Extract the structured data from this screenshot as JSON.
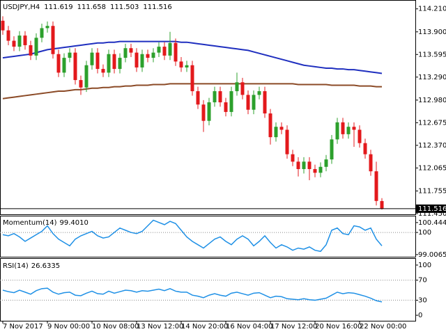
{
  "chart_data": {
    "type": "candlestick",
    "title": "USDJPY,H4",
    "categories": [
      "7 Nov 2017",
      null,
      null,
      null,
      null,
      null,
      null,
      null,
      "9 Nov 00:00",
      null,
      null,
      null,
      null,
      null,
      null,
      null,
      "10 Nov 08:00",
      null,
      null,
      null,
      null,
      null,
      null,
      null,
      "13 Nov 12:00",
      null,
      null,
      null,
      null,
      null,
      null,
      null,
      "14 Nov 20:00",
      null,
      null,
      null,
      null,
      null,
      null,
      null,
      "16 Nov 04:00",
      null,
      null,
      null,
      null,
      null,
      null,
      null,
      "17 Nov 12:00",
      null,
      null,
      null,
      null,
      null,
      null,
      null,
      "20 Nov 16:00",
      null,
      null,
      null,
      null,
      null,
      null,
      null,
      "22 Nov 00:00",
      null,
      null,
      null,
      null
    ],
    "open": [
      114.05,
      113.92,
      113.78,
      113.7,
      113.85,
      113.72,
      113.58,
      113.82,
      113.95,
      113.98,
      113.6,
      113.35,
      113.55,
      113.62,
      113.25,
      113.15,
      113.45,
      113.62,
      113.4,
      113.35,
      113.6,
      113.4,
      113.55,
      113.68,
      113.62,
      113.42,
      113.6,
      113.55,
      113.62,
      113.7,
      113.58,
      113.75,
      113.5,
      113.42,
      113.45,
      113.1,
      112.92,
      112.7,
      112.95,
      113.1,
      112.95,
      112.82,
      113.1,
      113.22,
      113.05,
      112.85,
      113.05,
      113.1,
      112.8,
      112.48,
      112.62,
      112.58,
      112.25,
      112.15,
      112.05,
      112.15,
      112.05,
      112.0,
      112.08,
      112.18,
      112.45,
      112.68,
      112.52,
      112.62,
      112.58,
      112.4,
      112.25,
      112.02,
      111.619
    ],
    "high": [
      114.11,
      113.98,
      113.84,
      113.91,
      113.91,
      113.78,
      113.88,
      114.01,
      114.04,
      114.04,
      113.66,
      113.61,
      113.68,
      113.68,
      113.31,
      113.51,
      113.68,
      113.68,
      113.46,
      113.66,
      113.66,
      113.61,
      113.74,
      113.74,
      113.68,
      113.66,
      113.66,
      113.68,
      113.76,
      113.76,
      113.9,
      113.81,
      113.56,
      113.51,
      113.51,
      113.16,
      112.98,
      113.01,
      113.16,
      113.16,
      113.01,
      113.16,
      113.35,
      113.28,
      113.11,
      113.11,
      113.16,
      113.16,
      112.86,
      112.68,
      112.68,
      112.64,
      112.31,
      112.21,
      112.21,
      112.21,
      112.11,
      112.14,
      112.24,
      112.51,
      112.74,
      112.74,
      112.68,
      112.68,
      112.64,
      112.46,
      112.31,
      112.15,
      111.658
    ],
    "low": [
      113.86,
      113.72,
      113.64,
      113.64,
      113.66,
      113.52,
      113.52,
      113.76,
      113.89,
      113.54,
      113.29,
      113.29,
      113.49,
      113.19,
      113.05,
      113.09,
      113.39,
      113.34,
      113.29,
      113.29,
      113.34,
      113.34,
      113.49,
      113.56,
      113.36,
      113.36,
      113.49,
      113.49,
      113.56,
      113.52,
      113.52,
      113.44,
      113.36,
      113.36,
      113.04,
      112.86,
      112.55,
      112.64,
      112.89,
      112.89,
      112.76,
      112.76,
      113.04,
      112.99,
      112.79,
      112.79,
      112.99,
      112.74,
      112.38,
      112.42,
      112.52,
      112.19,
      112.09,
      111.95,
      111.99,
      111.9,
      111.94,
      111.94,
      112.02,
      112.12,
      112.39,
      112.46,
      112.46,
      112.35,
      112.34,
      112.19,
      111.96,
      111.56,
      111.503
    ],
    "close": [
      113.92,
      113.78,
      113.7,
      113.85,
      113.72,
      113.58,
      113.82,
      113.95,
      113.98,
      113.6,
      113.35,
      113.55,
      113.62,
      113.25,
      113.15,
      113.45,
      113.62,
      113.4,
      113.35,
      113.6,
      113.4,
      113.55,
      113.68,
      113.62,
      113.42,
      113.6,
      113.55,
      113.62,
      113.7,
      113.58,
      113.75,
      113.5,
      113.42,
      113.45,
      113.1,
      112.92,
      112.7,
      112.95,
      113.1,
      112.95,
      112.82,
      113.1,
      113.22,
      113.05,
      112.85,
      113.05,
      113.1,
      112.8,
      112.48,
      112.62,
      112.58,
      112.25,
      112.15,
      112.05,
      112.15,
      112.05,
      112.0,
      112.08,
      112.18,
      112.45,
      112.68,
      112.52,
      112.62,
      112.58,
      112.4,
      112.25,
      112.02,
      111.62,
      111.516
    ],
    "up_color": "#2ca02c",
    "down_color": "#e3191c",
    "moving_averages": [
      {
        "color": "#1f2fbf",
        "values": [
          113.55,
          113.56,
          113.57,
          113.58,
          113.59,
          113.6,
          113.62,
          113.64,
          113.66,
          113.67,
          113.68,
          113.69,
          113.7,
          113.71,
          113.72,
          113.73,
          113.74,
          113.75,
          113.75,
          113.76,
          113.76,
          113.77,
          113.77,
          113.77,
          113.77,
          113.77,
          113.77,
          113.77,
          113.77,
          113.77,
          113.77,
          113.77,
          113.76,
          113.76,
          113.75,
          113.74,
          113.73,
          113.72,
          113.71,
          113.7,
          113.69,
          113.68,
          113.67,
          113.66,
          113.65,
          113.63,
          113.61,
          113.59,
          113.57,
          113.55,
          113.53,
          113.51,
          113.49,
          113.47,
          113.45,
          113.44,
          113.43,
          113.42,
          113.41,
          113.41,
          113.4,
          113.4,
          113.39,
          113.39,
          113.38,
          113.37,
          113.36,
          113.35,
          113.34
        ]
      },
      {
        "color": "#8b4a26",
        "values": [
          113.0,
          113.01,
          113.02,
          113.03,
          113.04,
          113.05,
          113.06,
          113.07,
          113.08,
          113.09,
          113.1,
          113.1,
          113.11,
          113.12,
          113.12,
          113.13,
          113.14,
          113.14,
          113.15,
          113.15,
          113.16,
          113.16,
          113.17,
          113.17,
          113.18,
          113.18,
          113.18,
          113.19,
          113.19,
          113.19,
          113.2,
          113.2,
          113.2,
          113.2,
          113.2,
          113.2,
          113.2,
          113.2,
          113.2,
          113.2,
          113.2,
          113.2,
          113.2,
          113.2,
          113.2,
          113.2,
          113.2,
          113.2,
          113.2,
          113.2,
          113.2,
          113.2,
          113.2,
          113.19,
          113.19,
          113.19,
          113.19,
          113.19,
          113.19,
          113.18,
          113.18,
          113.18,
          113.18,
          113.18,
          113.17,
          113.17,
          113.17,
          113.16,
          113.16
        ]
      }
    ],
    "ylim": [
      111.44,
      114.32
    ],
    "yticks": [
      {
        "value": 114.21,
        "label": "114.210"
      },
      {
        "value": 113.9,
        "label": "113.900"
      },
      {
        "value": 113.595,
        "label": "113.595"
      },
      {
        "value": 113.29,
        "label": "113.290"
      },
      {
        "value": 112.98,
        "label": "112.980"
      },
      {
        "value": 112.675,
        "label": "112.675"
      },
      {
        "value": 112.37,
        "label": "112.370"
      },
      {
        "value": 112.065,
        "label": "112.065"
      },
      {
        "value": 111.755,
        "label": "111.755"
      },
      {
        "value": 111.45,
        "label": "111.450"
      }
    ],
    "indicators": [
      {
        "type": "line",
        "name": "Momentum(14)",
        "color": "#1e90e6",
        "last_value_label": "99.4010",
        "values": [
          99.9,
          99.85,
          99.95,
          99.8,
          99.6,
          99.75,
          99.9,
          100.05,
          100.3,
          99.95,
          99.7,
          99.55,
          99.4,
          99.7,
          99.85,
          99.95,
          100.05,
          99.85,
          99.75,
          99.8,
          100.0,
          100.2,
          100.1,
          100.0,
          99.95,
          100.05,
          100.3,
          100.55,
          100.45,
          100.35,
          100.5,
          100.4,
          100.1,
          99.8,
          99.6,
          99.45,
          99.3,
          99.5,
          99.7,
          99.8,
          99.6,
          99.45,
          99.7,
          99.85,
          99.7,
          99.4,
          99.6,
          99.85,
          99.55,
          99.3,
          99.45,
          99.35,
          99.2,
          99.3,
          99.25,
          99.35,
          99.2,
          99.15,
          99.45,
          100.1,
          100.2,
          99.95,
          99.9,
          100.3,
          100.25,
          100.1,
          100.2,
          99.7,
          99.401
        ],
        "ylim": [
          98.94,
          100.69
        ],
        "yticks": [
          100.4444,
          100,
          99.0065
        ],
        "levels": [
          100
        ]
      },
      {
        "type": "line",
        "name": "RSI(14)",
        "color": "#1e90e6",
        "values": [
          50,
          47,
          45,
          50,
          46,
          42,
          49,
          53,
          54,
          46,
          42,
          45,
          46,
          40,
          39,
          44,
          48,
          43,
          42,
          48,
          44,
          47,
          50,
          49,
          46,
          49,
          48,
          50,
          52,
          49,
          53,
          48,
          46,
          46,
          40,
          38,
          35,
          40,
          43,
          40,
          38,
          44,
          46,
          43,
          40,
          44,
          45,
          40,
          35,
          38,
          37,
          33,
          32,
          31,
          33,
          31,
          30,
          32,
          34,
          40,
          46,
          43,
          45,
          44,
          41,
          38,
          34,
          29,
          26.6335
        ],
        "ylim": [
          -9.6,
          111
        ],
        "yticks": [
          100,
          70,
          30,
          0
        ],
        "levels": [
          70,
          30
        ]
      }
    ]
  }
}
